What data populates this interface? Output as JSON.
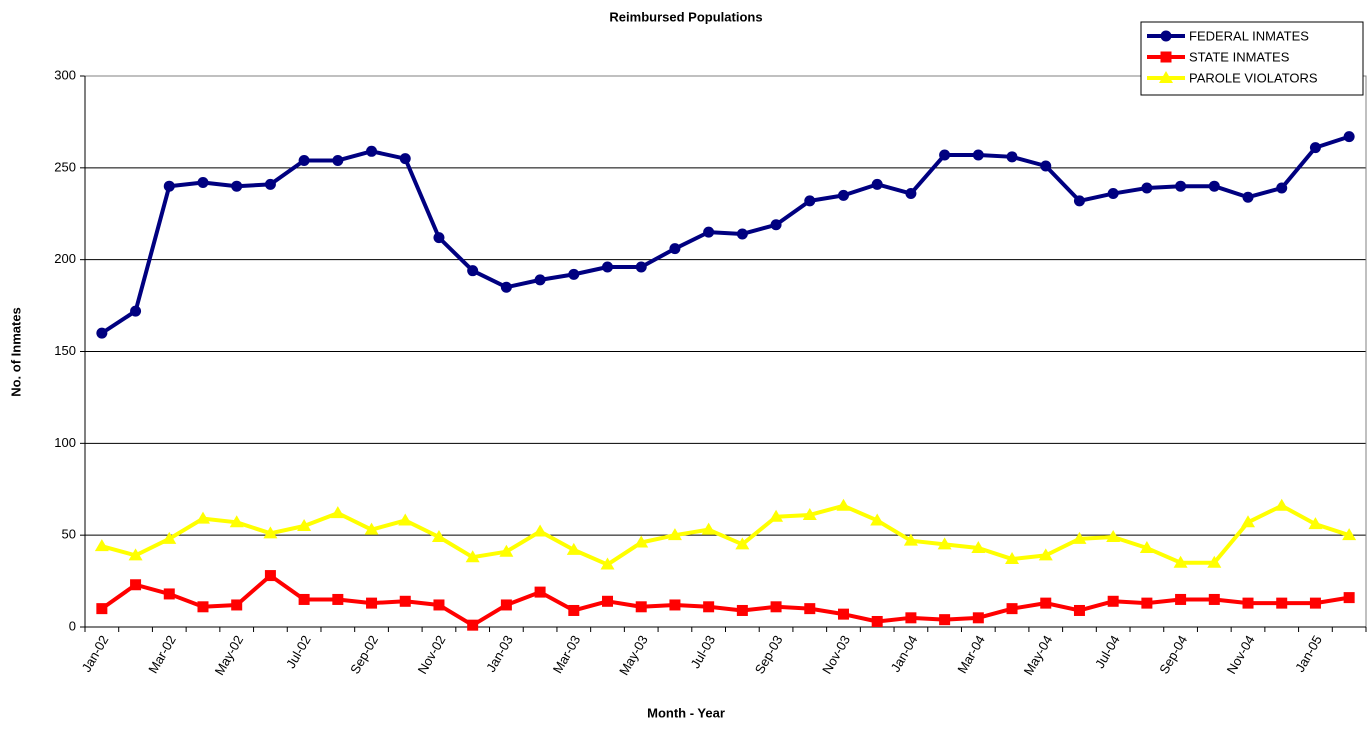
{
  "chart_data": {
    "type": "line",
    "title": "Reimbursed Populations",
    "x_label": "Month - Year",
    "y_label": "No. of Inmates",
    "categories": [
      "Jan-02",
      null,
      "Mar-02",
      null,
      "May-02",
      null,
      "Jul-02",
      null,
      "Sep-02",
      null,
      "Nov-02",
      null,
      "Jan-03",
      null,
      "Mar-03",
      null,
      "May-03",
      null,
      "Jul-03",
      null,
      "Sep-03",
      null,
      "Nov-03",
      null,
      "Jan-04",
      null,
      "Mar-04",
      null,
      "May-04",
      null,
      "Jul-04",
      null,
      "Sep-04",
      null,
      "Nov-04",
      null,
      "Jan-05",
      null
    ],
    "series": [
      {
        "name": "FEDERAL INMATES",
        "color": "#000080",
        "marker": "circle",
        "values": [
          160,
          172,
          240,
          242,
          240,
          241,
          254,
          254,
          259,
          255,
          212,
          194,
          185,
          189,
          192,
          196,
          196,
          206,
          215,
          214,
          219,
          232,
          235,
          241,
          236,
          257,
          257,
          256,
          251,
          232,
          236,
          239,
          240,
          240,
          234,
          239,
          261,
          267
        ]
      },
      {
        "name": "STATE INMATES",
        "color": "#ff0000",
        "marker": "square",
        "values": [
          10,
          23,
          18,
          11,
          12,
          28,
          15,
          15,
          13,
          14,
          12,
          1,
          12,
          19,
          9,
          14,
          11,
          12,
          11,
          9,
          11,
          10,
          7,
          3,
          5,
          4,
          5,
          10,
          13,
          9,
          14,
          13,
          15,
          15,
          13,
          13,
          13,
          16
        ]
      },
      {
        "name": "PAROLE VIOLATORS",
        "color": "#ffff00",
        "marker": "triangle",
        "values": [
          44,
          39,
          48,
          59,
          57,
          51,
          55,
          62,
          53,
          58,
          49,
          38,
          41,
          52,
          42,
          34,
          46,
          50,
          53,
          45,
          60,
          61,
          66,
          58,
          47,
          45,
          43,
          37,
          39,
          48,
          49,
          43,
          35,
          35,
          57,
          66,
          56,
          50
        ]
      }
    ],
    "ylim": [
      0,
      300
    ],
    "yticks": [
      0,
      50,
      100,
      150,
      200,
      250,
      300
    ],
    "grid": true,
    "legend": "top-right"
  }
}
